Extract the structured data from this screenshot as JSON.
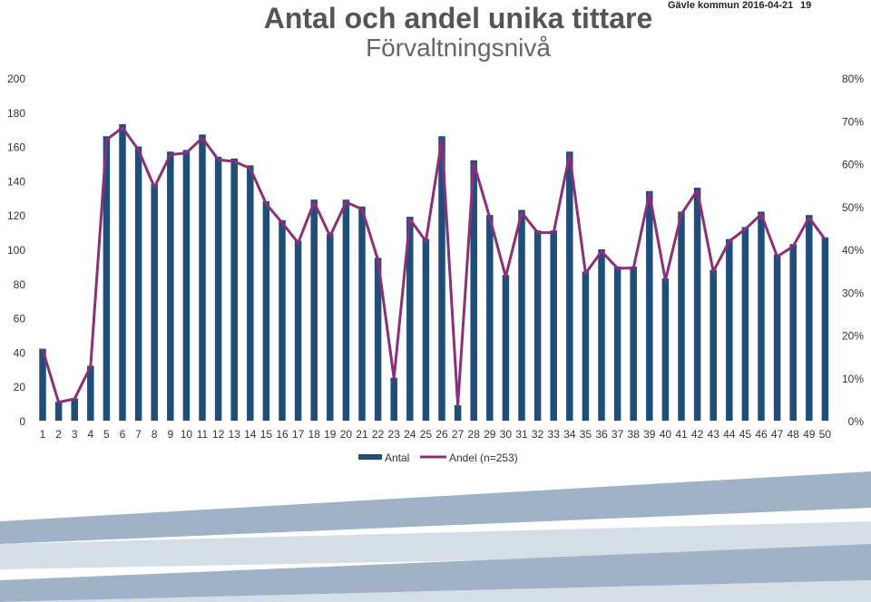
{
  "header": {
    "title": "Antal och andel unika tittare",
    "subtitle": "Förvaltningsnivå",
    "org": "Gävle kommun",
    "date": "2016-04-21",
    "page": "19"
  },
  "colors": {
    "bar": "#1f4e79",
    "line": "#8b2f7a",
    "band_dark": "#9fb2c8",
    "band_light": "#d5dde7"
  },
  "chart_data": {
    "type": "bar",
    "categories": [
      "1",
      "2",
      "3",
      "4",
      "5",
      "6",
      "7",
      "8",
      "9",
      "10",
      "11",
      "12",
      "13",
      "14",
      "15",
      "16",
      "17",
      "18",
      "19",
      "20",
      "21",
      "22",
      "23",
      "24",
      "25",
      "26",
      "27",
      "28",
      "29",
      "30",
      "31",
      "32",
      "33",
      "34",
      "35",
      "36",
      "37",
      "38",
      "39",
      "40",
      "41",
      "42",
      "43",
      "44",
      "45",
      "46",
      "47",
      "48",
      "49",
      "50"
    ],
    "ylim": [
      0,
      200
    ],
    "y2lim": [
      0,
      0.8
    ],
    "yticks": [
      "0",
      "20",
      "40",
      "60",
      "80",
      "100",
      "120",
      "140",
      "160",
      "180",
      "200"
    ],
    "y2ticks": [
      "0%",
      "10%",
      "20%",
      "30%",
      "40%",
      "50%",
      "60%",
      "70%",
      "80%"
    ],
    "legend_position": "bottom",
    "series": [
      {
        "name": "Antal",
        "type": "bar",
        "axis": "left",
        "values": [
          42,
          11,
          13,
          32,
          166,
          173,
          160,
          138,
          157,
          158,
          167,
          154,
          153,
          149,
          128,
          117,
          105,
          129,
          109,
          129,
          125,
          95,
          25,
          119,
          106,
          166,
          9,
          152,
          120,
          85,
          123,
          111,
          111,
          157,
          87,
          100,
          90,
          90,
          134,
          83,
          122,
          136,
          88,
          106,
          113,
          122,
          97,
          103,
          120,
          107
        ]
      },
      {
        "name": "Andel (n=253)",
        "type": "line",
        "axis": "right",
        "values": [
          0.166,
          0.043,
          0.051,
          0.126,
          0.656,
          0.684,
          0.632,
          0.545,
          0.621,
          0.625,
          0.66,
          0.609,
          0.605,
          0.589,
          0.506,
          0.462,
          0.415,
          0.51,
          0.431,
          0.51,
          0.494,
          0.375,
          0.099,
          0.47,
          0.419,
          0.656,
          0.036,
          0.601,
          0.474,
          0.336,
          0.486,
          0.439,
          0.439,
          0.621,
          0.344,
          0.395,
          0.356,
          0.356,
          0.53,
          0.328,
          0.482,
          0.538,
          0.348,
          0.419,
          0.447,
          0.482,
          0.383,
          0.407,
          0.474,
          0.423
        ]
      }
    ]
  }
}
